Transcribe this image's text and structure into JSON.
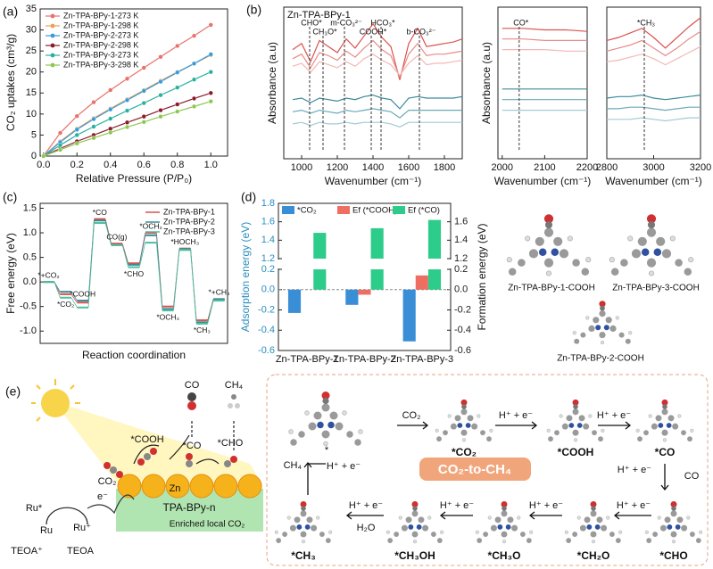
{
  "chart_data": [
    {
      "panel": "(a)",
      "type": "line",
      "marker": "circle",
      "legend": "upper left",
      "xlabel": "Relative Pressure (P/P₀)",
      "ylabel": "CO₂ uptakes (cm³/g)",
      "x": [
        0,
        0.1,
        0.2,
        0.3,
        0.4,
        0.5,
        0.6,
        0.7,
        0.8,
        0.9,
        1.0
      ],
      "xlim": [
        -0.02,
        1.1
      ],
      "xticks": [
        {
          "value": 0,
          "label": "0.0"
        },
        0.2,
        0.4,
        0.6,
        0.8,
        {
          "value": 1,
          "label": "1.0"
        }
      ],
      "ylim": [
        0,
        35
      ],
      "yticks": [
        0,
        5,
        10,
        15,
        20,
        25,
        30,
        35
      ],
      "series": [
        {
          "name": "Zn-TPA-BPy-1-273 K",
          "color": "#e8716b",
          "values": [
            0,
            5.5,
            9.5,
            12.8,
            15.7,
            18.4,
            21,
            23.6,
            26.2,
            28.6,
            31.2
          ]
        },
        {
          "name": "Zn-TPA-BPy-1-298 K",
          "color": "#f0a050",
          "values": [
            0,
            3.5,
            6.5,
            9,
            11.3,
            13.5,
            15.7,
            17.9,
            20,
            22,
            24
          ]
        },
        {
          "name": "Zn-TPA-BPy-2-273 K",
          "color": "#3a9ad9",
          "values": [
            0,
            3.3,
            6.3,
            8.8,
            11.1,
            13.3,
            15.5,
            17.7,
            19.9,
            22,
            24.2
          ]
        },
        {
          "name": "Zn-TPA-BPy-2-298 K",
          "color": "#8b1a2b",
          "values": [
            0,
            1.8,
            3.5,
            5,
            6.5,
            8,
            9.4,
            10.9,
            12.3,
            13.7,
            15
          ]
        },
        {
          "name": "Zn-TPA-BPy-3-273 K",
          "color": "#2ab0a0",
          "values": [
            0,
            2.6,
            5,
            7,
            8.9,
            10.8,
            12.6,
            14.5,
            16.3,
            18.2,
            20
          ]
        },
        {
          "name": "Zn-TPA-BPy-3-298 K",
          "color": "#8cc850",
          "values": [
            0,
            1.5,
            3,
            4.3,
            5.6,
            6.9,
            8.1,
            9.4,
            10.6,
            11.8,
            13
          ]
        }
      ]
    },
    {
      "panel": "(b)",
      "type": "line",
      "subtitle": "Zn-TPA-BPy-1",
      "xlabel": "Wavenumber (cm⁻¹)",
      "ylabel": "Absorbance (a.u)",
      "x": [
        950,
        1000,
        1050,
        1100,
        1150,
        1200,
        1250,
        1300,
        1350,
        1400,
        1450,
        1500,
        1550,
        1600,
        1650,
        1700,
        1750,
        1800,
        1850,
        1900
      ],
      "xlim": [
        900,
        1900
      ],
      "xticks": [
        1000,
        1200,
        1400,
        1600,
        1800
      ],
      "ylim": [
        0,
        10
      ],
      "annotations": [
        {
          "x": 1045,
          "label": "CHO*"
        },
        {
          "x": 1120,
          "label": "CH₃O*"
        },
        {
          "x": 1240,
          "label": "m-CO₃²⁻"
        },
        {
          "x": 1390,
          "label": "COOH*"
        },
        {
          "x": 1445,
          "label": "HCO₃*"
        },
        {
          "x": 1660,
          "label": "b-CO₃²⁻"
        }
      ],
      "series": [
        {
          "color": "#d9534f",
          "values": [
            7.2,
            7.6,
            6.4,
            7.8,
            7.4,
            7.0,
            7.9,
            7.3,
            8.1,
            8.9,
            8.0,
            7.4,
            5.2,
            7.6,
            8.6,
            7.4,
            7.5,
            7.6,
            7.7,
            7.9
          ]
        },
        {
          "color": "#e88a86",
          "values": [
            6.6,
            6.9,
            6.0,
            7.0,
            6.8,
            6.5,
            7.1,
            6.7,
            7.3,
            7.8,
            7.2,
            6.8,
            5.4,
            6.9,
            7.6,
            6.8,
            6.9,
            6.9,
            7.0,
            7.1
          ]
        },
        {
          "color": "#f2b8b5",
          "values": [
            6.1,
            6.3,
            5.7,
            6.4,
            6.2,
            6.0,
            6.4,
            6.1,
            6.6,
            6.9,
            6.5,
            6.2,
            5.5,
            6.3,
            6.8,
            6.2,
            6.3,
            6.3,
            6.4,
            6.5
          ]
        },
        {
          "color": "#3a8a9a",
          "values": [
            3.9,
            4.0,
            3.7,
            4.0,
            3.9,
            3.8,
            4.0,
            3.9,
            4.1,
            4.2,
            4.0,
            3.9,
            3.3,
            4.0,
            4.1,
            4.0,
            4.0,
            4.0,
            4.0,
            4.1
          ]
        },
        {
          "color": "#6aaab8",
          "values": [
            3.1,
            3.2,
            3.0,
            3.2,
            3.1,
            3.0,
            3.2,
            3.1,
            3.2,
            3.3,
            3.2,
            3.1,
            2.7,
            3.2,
            3.2,
            3.2,
            3.2,
            3.2,
            3.2,
            3.2
          ]
        },
        {
          "color": "#a3cbd5",
          "values": [
            2.3,
            2.4,
            2.2,
            2.4,
            2.3,
            2.3,
            2.4,
            2.3,
            2.4,
            2.4,
            2.4,
            2.3,
            2.1,
            2.4,
            2.4,
            2.4,
            2.4,
            2.4,
            2.4,
            2.4
          ]
        }
      ]
    },
    {
      "type": "line",
      "xlabel": "Wavenumber (cm⁻¹)",
      "ylabel": "Absorbance (a.u)",
      "x": [
        2000,
        2050,
        2100,
        2150,
        2200
      ],
      "xlim": [
        1990,
        2200
      ],
      "xticks": [
        2000,
        2100,
        2200
      ],
      "ylim": [
        0,
        10
      ],
      "annotations": [
        {
          "x": 2040,
          "label": "CO*"
        }
      ],
      "series": [
        {
          "color": "#d9534f",
          "values": [
            8.6,
            8.6,
            8.5,
            8.5,
            8.4
          ]
        },
        {
          "color": "#e88a86",
          "values": [
            7.9,
            7.9,
            7.8,
            7.8,
            7.8
          ]
        },
        {
          "color": "#f2b8b5",
          "values": [
            7.2,
            7.2,
            7.2,
            7.1,
            7.1
          ]
        },
        {
          "color": "#3a8a9a",
          "values": [
            4.6,
            4.6,
            4.6,
            4.6,
            4.6
          ]
        },
        {
          "color": "#6aaab8",
          "values": [
            3.9,
            3.9,
            3.9,
            3.9,
            3.9
          ]
        },
        {
          "color": "#a3cbd5",
          "values": [
            3.2,
            3.2,
            3.2,
            3.2,
            3.2
          ]
        }
      ]
    },
    {
      "type": "line",
      "xlabel": "Wavenumber (cm⁻¹)",
      "x": [
        2800,
        2850,
        2900,
        2950,
        3000,
        3050,
        3100,
        3150,
        3200
      ],
      "xlim": [
        2800,
        3200
      ],
      "xticks": [
        2800,
        3000,
        3200
      ],
      "ylim": [
        0,
        10
      ],
      "annotations": [
        {
          "x": 2960,
          "label": "*CH₃"
        }
      ],
      "series": [
        {
          "color": "#d9534f",
          "values": [
            7.8,
            8.0,
            8.3,
            8.6,
            8.0,
            7.3,
            8.0,
            8.7,
            9.3
          ]
        },
        {
          "color": "#e88a86",
          "values": [
            7.1,
            7.3,
            7.5,
            7.8,
            7.3,
            6.8,
            7.3,
            7.9,
            8.4
          ]
        },
        {
          "color": "#f2b8b5",
          "values": [
            6.4,
            6.5,
            6.7,
            6.9,
            6.6,
            6.2,
            6.6,
            7.0,
            7.4
          ]
        },
        {
          "color": "#3a8a9a",
          "values": [
            4.0,
            4.1,
            4.1,
            4.2,
            4.0,
            3.9,
            4.0,
            4.1,
            4.2
          ]
        },
        {
          "color": "#6aaab8",
          "values": [
            3.3,
            3.3,
            3.4,
            3.4,
            3.3,
            3.2,
            3.3,
            3.4,
            3.4
          ]
        },
        {
          "color": "#a3cbd5",
          "values": [
            2.6,
            2.6,
            2.6,
            2.7,
            2.6,
            2.5,
            2.6,
            2.7,
            2.7
          ]
        }
      ]
    },
    {
      "panel": "(c)",
      "type": "step",
      "legend": "upper right",
      "xlabel": "Reaction coordination",
      "ylabel": "Free energy (eV)",
      "categories": [
        "*+CO₂",
        "*CO₂",
        "*COOH",
        "*CO",
        "CO(g)",
        "*CHO",
        "*OCH₂",
        "*OCH₃",
        "*HOCH₃",
        "*CH₃",
        "*+CH₄"
      ],
      "ylim": [
        -1.25,
        1.6
      ],
      "yticks": [
        {
          "value": -1,
          "label": "-1.0"
        },
        -0.5,
        {
          "value": 0,
          "label": "0.0"
        },
        0.5,
        {
          "value": 1,
          "label": "1.0"
        },
        1.5
      ],
      "series": [
        {
          "name": "Zn-TPA-BPy-1",
          "color": "#d9534f",
          "values": [
            0,
            -0.25,
            -0.42,
            1.28,
            0.78,
            0.38,
            1.0,
            -0.5,
            0.68,
            -0.78,
            -0.35
          ]
        },
        {
          "name": "Zn-TPA-BPy-2",
          "color": "#3a8a9a",
          "values": [
            0,
            -0.2,
            -0.38,
            1.25,
            0.75,
            0.35,
            0.95,
            -0.55,
            0.67,
            -0.82,
            -0.35
          ]
        },
        {
          "name": "Zn-TPA-BPy-3",
          "color": "#4cc0a0",
          "values": [
            0,
            -0.32,
            -0.52,
            1.2,
            0.75,
            0.3,
            0.8,
            -0.58,
            0.65,
            -0.85,
            -0.38
          ]
        }
      ]
    },
    {
      "panel": "(d)",
      "type": "bar",
      "legend": "top",
      "ylabel": "Adsorption energy (eV)",
      "y2label": "Formation energy (eV)",
      "categories": [
        "Zn-TPA-BPy-1",
        "Zn-TPA-BPy-2",
        "Zn-TPA-BPy-3"
      ],
      "ylim": [
        -0.6,
        1.8
      ],
      "ybreak": [
        0.2,
        1.2
      ],
      "yticks": [
        -0.6,
        -0.4,
        -0.2,
        {
          "value": 0,
          "label": "0.0"
        },
        0.2,
        1.2,
        1.4,
        1.6,
        1.8
      ],
      "y2lim": [
        -0.6,
        1.8
      ],
      "y2break": [
        0.2,
        1.2
      ],
      "y2ticks": [
        -0.6,
        -0.4,
        -0.2,
        {
          "value": 0,
          "label": "0.0"
        },
        0.2,
        1.2,
        1.4,
        1.6
      ],
      "series": [
        {
          "name": "*CO₂",
          "color": "#3a8ed6",
          "axis": "y",
          "values": [
            -0.23,
            -0.15,
            -0.51
          ]
        },
        {
          "name": "Ef (*COOH)",
          "color": "#ee6f62",
          "axis": "y2",
          "values": [
            0,
            -0.05,
            0.14
          ]
        },
        {
          "name": "Ef (*CO)",
          "color": "#2ecc8a",
          "axis": "y2",
          "values": [
            1.48,
            1.53,
            1.62
          ]
        }
      ]
    }
  ],
  "molecules": {
    "labels": [
      "Zn-TPA-BPy-1-COOH",
      "Zn-TPA-BPy-3-COOH",
      "Zn-TPA-BPy-2-COOH"
    ]
  },
  "scheme": {
    "panel": "(e)",
    "left": {
      "co": "CO",
      "ch4": "CH₄",
      "cooh": "*COOH",
      "co_ads": "*CO",
      "cho": "*CHO",
      "co2": "CO₂",
      "zn": "Zn",
      "frame": "TPA-BPy-n",
      "enriched": "Enriched local CO₂",
      "ru_star": "Ru*",
      "ru": "Ru",
      "ru_plus": "Ru⁺",
      "teoa_plus": "TEOA⁺",
      "teoa": "TEOA",
      "electron": "e⁻"
    },
    "right": {
      "title": "CO₂-to-CH₄",
      "co2": "CO₂",
      "step": "H⁺ + e⁻",
      "co2_ads": "*CO₂",
      "cooh": "*COOH",
      "co_ads": "*CO",
      "co": "CO",
      "cho": "*CHO",
      "ch2o": "*CH₂O",
      "ch3o": "*CH₃O",
      "ch3oh": "*CH₃OH",
      "ch3": "*CH₃",
      "h2o": "H₂O",
      "ch4": "CH₄",
      "star": "*"
    }
  }
}
